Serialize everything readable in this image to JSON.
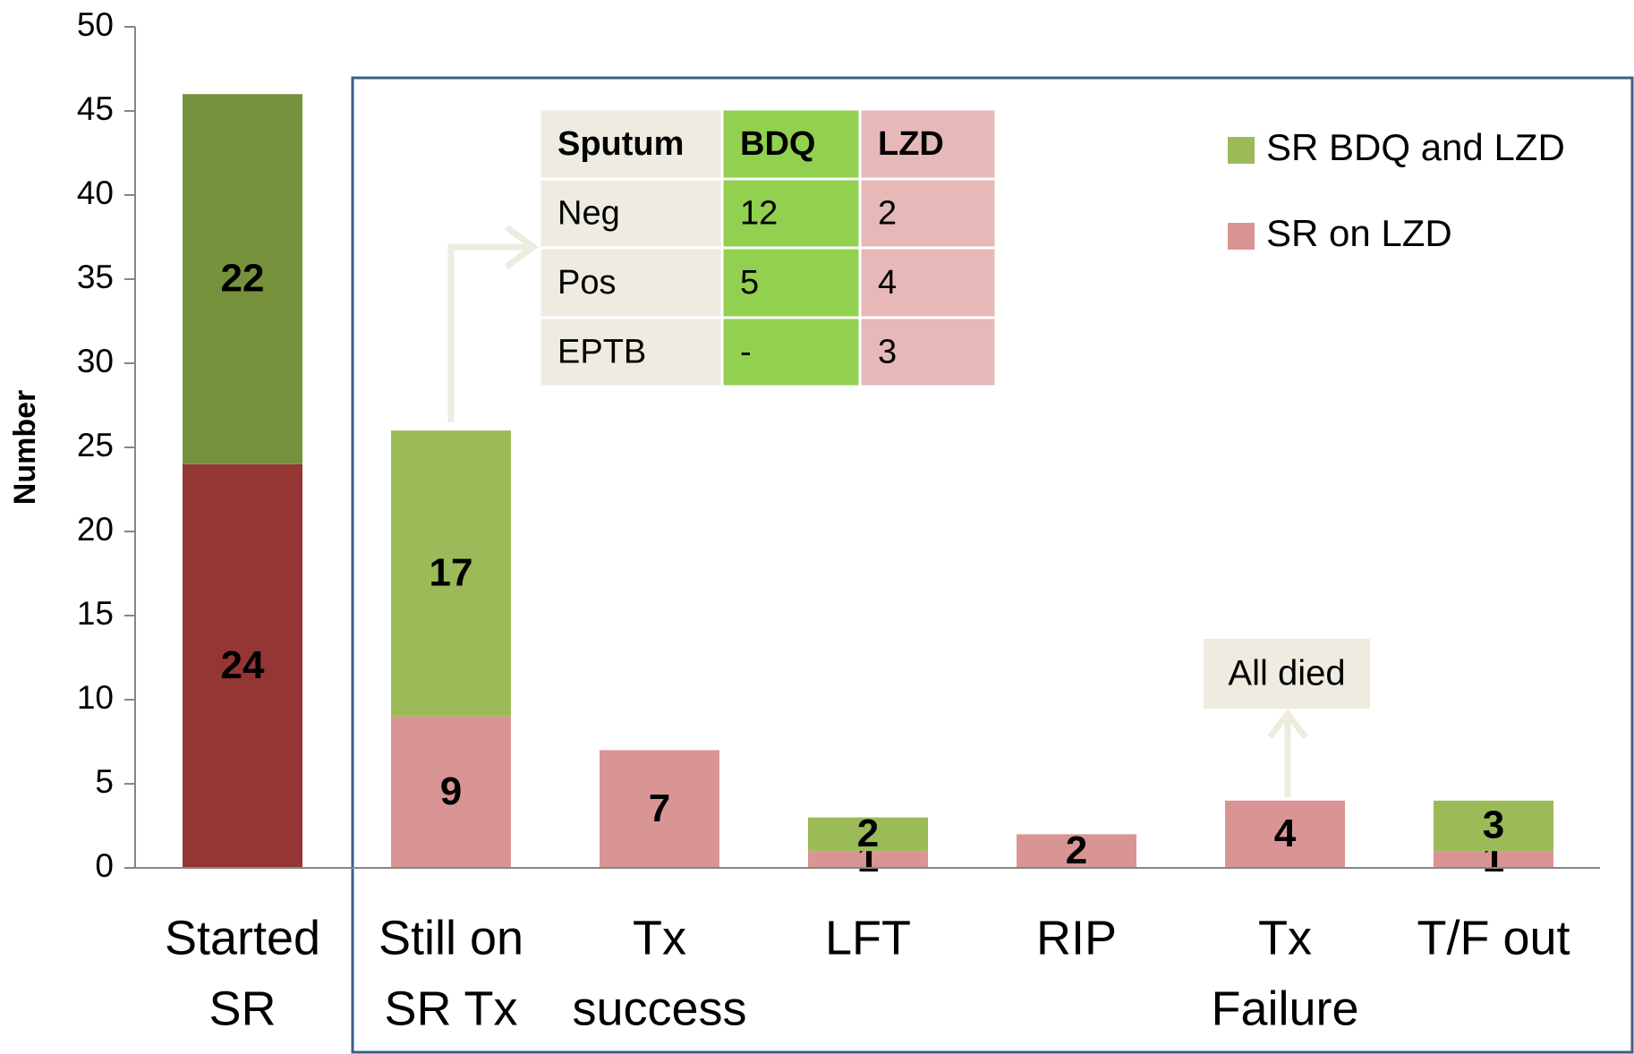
{
  "chart_data": {
    "type": "stacked_bar",
    "y_label": "Number",
    "categories": [
      [
        "Started",
        "SR"
      ],
      [
        "Still on",
        "SR Tx"
      ],
      [
        "Tx",
        "success"
      ],
      [
        "LFT"
      ],
      [
        "RIP"
      ],
      [
        "Tx",
        "Failure"
      ],
      [
        "T/F out"
      ]
    ],
    "series": [
      {
        "name": "SR on LZD",
        "color": "#d99594",
        "colors": [
          "#943634",
          "#d99594",
          "#d99594",
          "#d99594",
          "#d99594",
          "#d99594",
          "#d99594"
        ],
        "label_colors": [
          "#ffffff",
          "#000000",
          "#000000",
          "#000000",
          "#000000",
          "#000000",
          "#000000"
        ],
        "values": [
          24,
          9,
          7,
          1,
          2,
          4,
          1
        ]
      },
      {
        "name": "SR BDQ and LZD",
        "color": "#9bbb59",
        "colors": [
          "#76923c",
          "#9bbb59",
          "#9bbb59",
          "#9bbb59",
          "#9bbb59",
          "#9bbb59",
          "#9bbb59"
        ],
        "label_colors": [
          "#ffffff",
          "#000000",
          "#000000",
          "#000000",
          "#000000",
          "#000000",
          "#000000"
        ],
        "values": [
          22,
          17,
          null,
          2,
          null,
          null,
          3
        ]
      }
    ],
    "ylim": [
      0,
      50
    ],
    "yticks": [
      0,
      5,
      10,
      15,
      20,
      25,
      30,
      35,
      40,
      45,
      50
    ],
    "legend": "top-right",
    "annotation": "All died",
    "table": {
      "header": [
        "Sputum",
        "BDQ",
        "LZD"
      ],
      "rows": [
        [
          "Neg",
          "12",
          "2"
        ],
        [
          "Pos",
          "5",
          "4"
        ],
        [
          "EPTB",
          "-",
          "3"
        ]
      ]
    }
  }
}
